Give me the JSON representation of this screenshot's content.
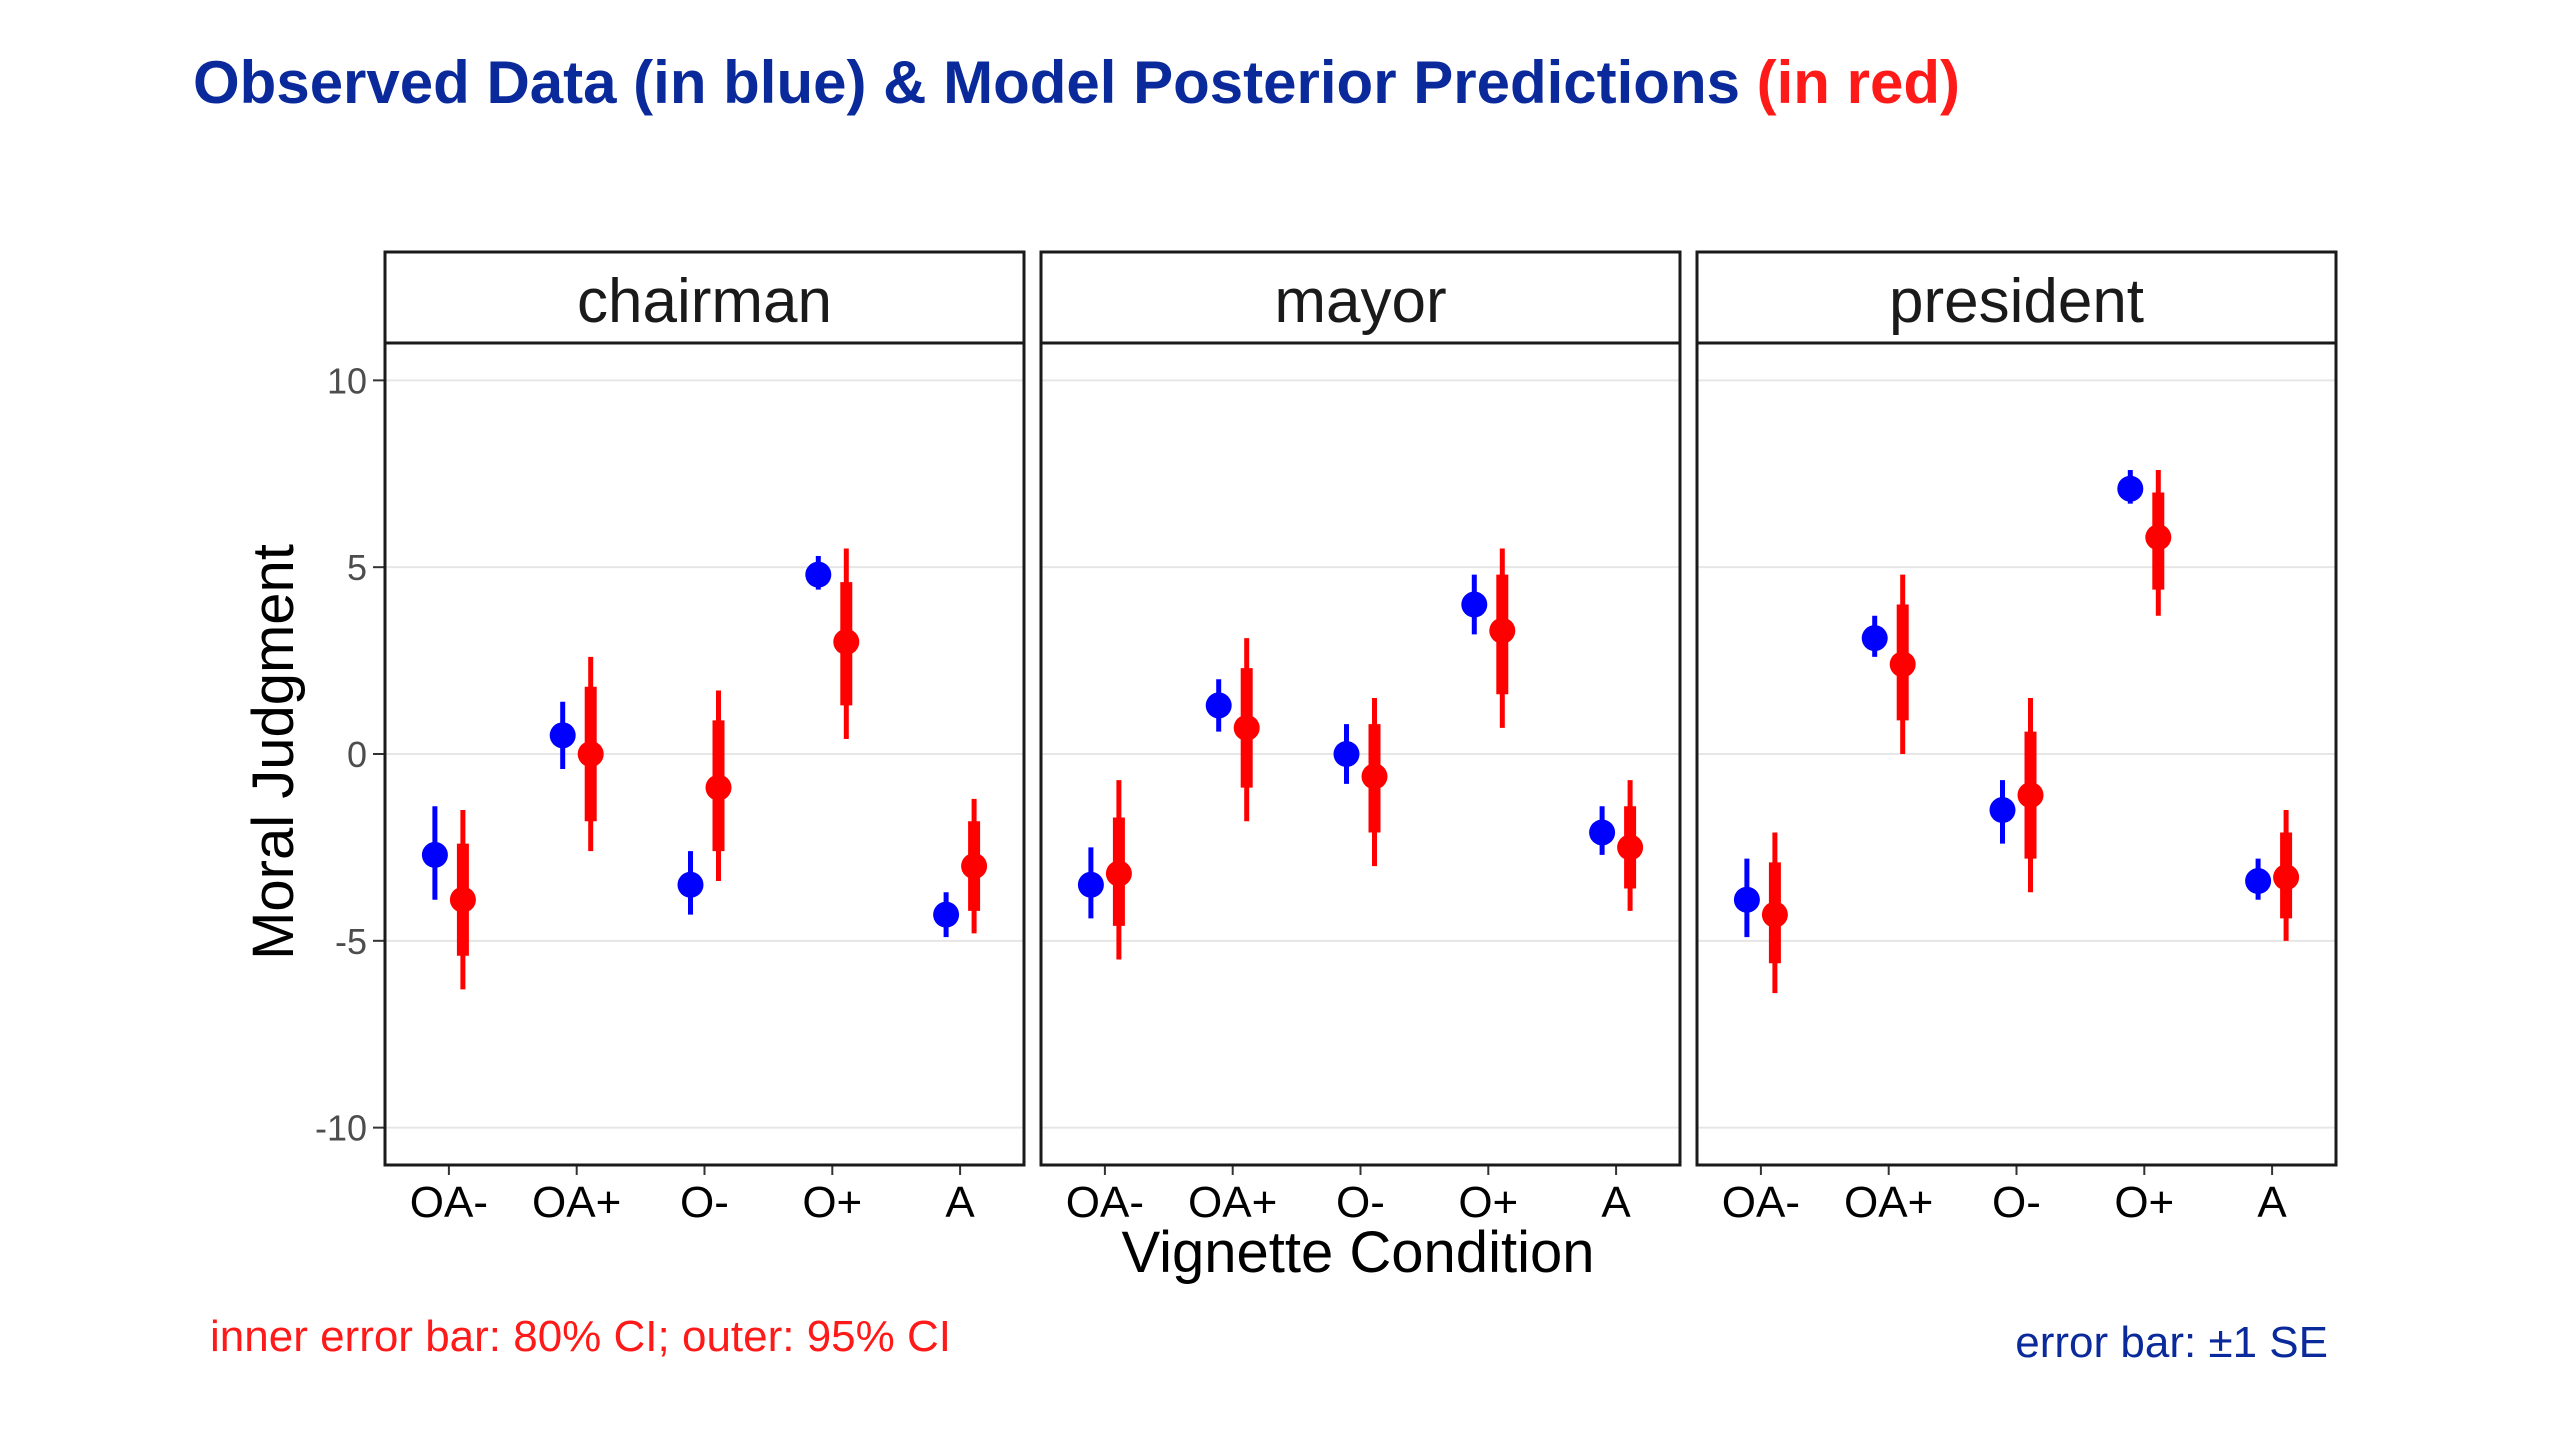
{
  "header": {
    "title_blue": "Observed Data (in blue) & Model Posterior Predictions",
    "title_red": "(in red)"
  },
  "notes": {
    "left": "inner error bar: 80% CI; outer: 95% CI",
    "right": "error bar: ±1 SE"
  },
  "colors": {
    "observed": "#0000ff",
    "predicted": "#ff0000",
    "title_blue": "#0a2a9c",
    "gridline": "#e6e6e6"
  },
  "chart_data": {
    "type": "scatter",
    "xlabel": "Vignette Condition",
    "ylabel": "Moral Judgment",
    "ylim": [
      -11,
      11
    ],
    "yticks": [
      -10,
      -5,
      0,
      5,
      10
    ],
    "categories": [
      "OA-",
      "OA+",
      "O-",
      "O+",
      "A"
    ],
    "grid": true,
    "panels": [
      {
        "facet": "chairman",
        "observed": [
          {
            "mean": -2.7,
            "se_low": -3.9,
            "se_high": -1.4
          },
          {
            "mean": 0.5,
            "se_low": -0.4,
            "se_high": 1.4
          },
          {
            "mean": -3.5,
            "se_low": -4.3,
            "se_high": -2.6
          },
          {
            "mean": 4.8,
            "se_low": 4.4,
            "se_high": 5.3
          },
          {
            "mean": -4.3,
            "se_low": -4.9,
            "se_high": -3.7
          }
        ],
        "predicted": [
          {
            "mean": -3.9,
            "ci80": [
              -5.4,
              -2.4
            ],
            "ci95": [
              -6.3,
              -1.5
            ]
          },
          {
            "mean": 0.0,
            "ci80": [
              -1.8,
              1.8
            ],
            "ci95": [
              -2.6,
              2.6
            ]
          },
          {
            "mean": -0.9,
            "ci80": [
              -2.6,
              0.9
            ],
            "ci95": [
              -3.4,
              1.7
            ]
          },
          {
            "mean": 3.0,
            "ci80": [
              1.3,
              4.6
            ],
            "ci95": [
              0.4,
              5.5
            ]
          },
          {
            "mean": -3.0,
            "ci80": [
              -4.2,
              -1.8
            ],
            "ci95": [
              -4.8,
              -1.2
            ]
          }
        ]
      },
      {
        "facet": "mayor",
        "observed": [
          {
            "mean": -3.5,
            "se_low": -4.4,
            "se_high": -2.5
          },
          {
            "mean": 1.3,
            "se_low": 0.6,
            "se_high": 2.0
          },
          {
            "mean": 0.0,
            "se_low": -0.8,
            "se_high": 0.8
          },
          {
            "mean": 4.0,
            "se_low": 3.2,
            "se_high": 4.8
          },
          {
            "mean": -2.1,
            "se_low": -2.7,
            "se_high": -1.4
          }
        ],
        "predicted": [
          {
            "mean": -3.2,
            "ci80": [
              -4.6,
              -1.7
            ],
            "ci95": [
              -5.5,
              -0.7
            ]
          },
          {
            "mean": 0.7,
            "ci80": [
              -0.9,
              2.3
            ],
            "ci95": [
              -1.8,
              3.1
            ]
          },
          {
            "mean": -0.6,
            "ci80": [
              -2.1,
              0.8
            ],
            "ci95": [
              -3.0,
              1.5
            ]
          },
          {
            "mean": 3.3,
            "ci80": [
              1.6,
              4.8
            ],
            "ci95": [
              0.7,
              5.5
            ]
          },
          {
            "mean": -2.5,
            "ci80": [
              -3.6,
              -1.4
            ],
            "ci95": [
              -4.2,
              -0.7
            ]
          }
        ]
      },
      {
        "facet": "president",
        "observed": [
          {
            "mean": -3.9,
            "se_low": -4.9,
            "se_high": -2.8
          },
          {
            "mean": 3.1,
            "se_low": 2.6,
            "se_high": 3.7
          },
          {
            "mean": -1.5,
            "se_low": -2.4,
            "se_high": -0.7
          },
          {
            "mean": 7.1,
            "se_low": 6.7,
            "se_high": 7.6
          },
          {
            "mean": -3.4,
            "se_low": -3.9,
            "se_high": -2.8
          }
        ],
        "predicted": [
          {
            "mean": -4.3,
            "ci80": [
              -5.6,
              -2.9
            ],
            "ci95": [
              -6.4,
              -2.1
            ]
          },
          {
            "mean": 2.4,
            "ci80": [
              0.9,
              4.0
            ],
            "ci95": [
              0.0,
              4.8
            ]
          },
          {
            "mean": -1.1,
            "ci80": [
              -2.8,
              0.6
            ],
            "ci95": [
              -3.7,
              1.5
            ]
          },
          {
            "mean": 5.8,
            "ci80": [
              4.4,
              7.0
            ],
            "ci95": [
              3.7,
              7.6
            ]
          },
          {
            "mean": -3.3,
            "ci80": [
              -4.4,
              -2.1
            ],
            "ci95": [
              -5.0,
              -1.5
            ]
          }
        ]
      }
    ]
  }
}
